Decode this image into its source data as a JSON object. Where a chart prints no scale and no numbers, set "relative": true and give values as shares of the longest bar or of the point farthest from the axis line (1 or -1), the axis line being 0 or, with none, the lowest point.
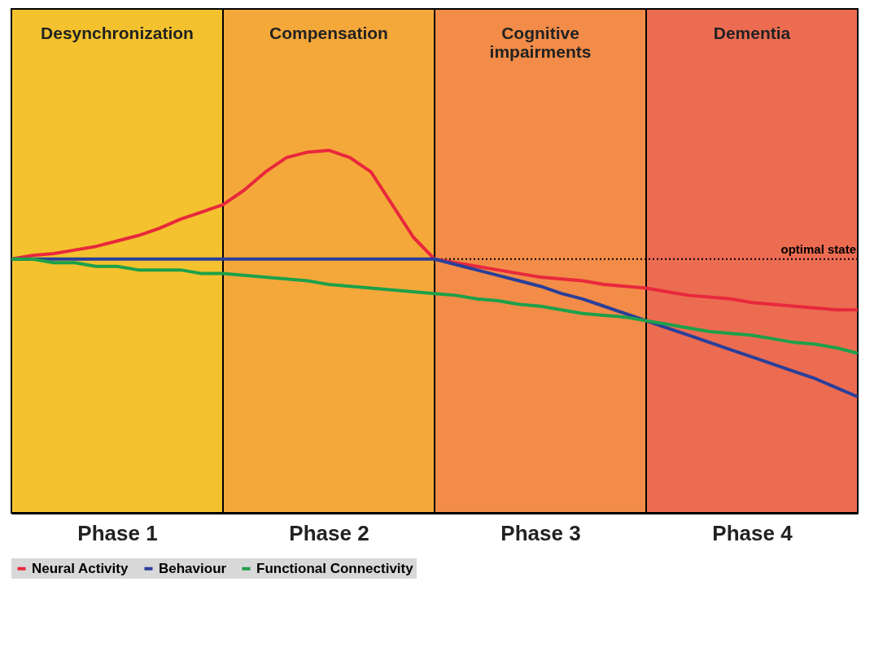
{
  "chart_data": {
    "type": "line",
    "relative": true,
    "categories": [
      null,
      null,
      null,
      null,
      null,
      "Phase 1",
      null,
      null,
      null,
      null,
      null,
      null,
      null,
      null,
      null,
      "Phase 2",
      null,
      null,
      null,
      null,
      null,
      null,
      null,
      null,
      null,
      "Phase 3",
      null,
      null,
      null,
      null,
      null,
      null,
      null,
      null,
      null,
      "Phase 4",
      null,
      null,
      null,
      null,
      null
    ],
    "series": [
      {
        "name": "Neural Activity",
        "color": "#e8283c",
        "values": [
          0.7,
          0.71,
          0.715,
          0.725,
          0.735,
          0.75,
          0.765,
          0.785,
          0.81,
          0.83,
          0.85,
          0.89,
          0.94,
          0.98,
          0.995,
          1.0,
          0.98,
          0.94,
          0.85,
          0.76,
          0.7,
          0.69,
          0.68,
          0.67,
          0.66,
          0.65,
          0.645,
          0.64,
          0.63,
          0.625,
          0.62,
          0.61,
          0.6,
          0.595,
          0.59,
          0.58,
          0.575,
          0.57,
          0.565,
          0.56,
          0.56
        ]
      },
      {
        "name": "Behaviour",
        "color": "#2a3f9a",
        "values": [
          0.7,
          0.7,
          0.7,
          0.7,
          0.7,
          0.7,
          0.7,
          0.7,
          0.7,
          0.7,
          0.7,
          0.7,
          0.7,
          0.7,
          0.7,
          0.7,
          0.7,
          0.7,
          0.7,
          0.7,
          0.7,
          0.685,
          0.67,
          0.655,
          0.64,
          0.625,
          0.605,
          0.59,
          0.57,
          0.55,
          0.53,
          0.51,
          0.49,
          0.47,
          0.45,
          0.43,
          0.41,
          0.39,
          0.37,
          0.345,
          0.32
        ]
      },
      {
        "name": "Functional Connectivity",
        "color": "#1ea04a",
        "values": [
          0.7,
          0.7,
          0.69,
          0.69,
          0.68,
          0.68,
          0.67,
          0.67,
          0.67,
          0.66,
          0.66,
          0.655,
          0.65,
          0.645,
          0.64,
          0.63,
          0.625,
          0.62,
          0.615,
          0.61,
          0.605,
          0.6,
          0.59,
          0.585,
          0.575,
          0.57,
          0.56,
          0.55,
          0.545,
          0.54,
          0.53,
          0.52,
          0.51,
          0.5,
          0.495,
          0.49,
          0.48,
          0.47,
          0.465,
          0.455,
          0.44
        ]
      }
    ],
    "annotations": [
      "Desynchronization",
      "Compensation",
      "Cognitive\nimpairments",
      "Dementia"
    ],
    "colors": [
      "#f3c22e",
      "#f5a83a",
      "#f28c48",
      "#ec6c52"
    ],
    "ref_lines": [
      {
        "axis": "y",
        "value": 0.7,
        "label": "optimal state",
        "color": "#000000",
        "line_style": "dotted"
      }
    ],
    "legend": "bottom",
    "line_style": "solid",
    "marker": "none"
  }
}
